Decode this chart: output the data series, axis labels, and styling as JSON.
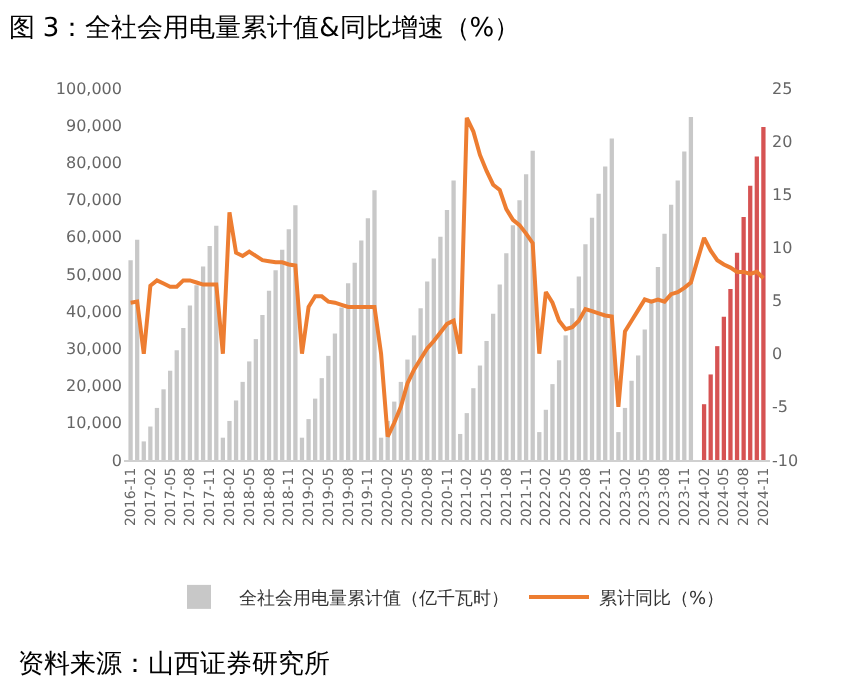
{
  "chart_data": {
    "type": "bar",
    "title": "图 3：全社会用电量累计值&同比增速（%）",
    "categories": [
      "2016-11",
      null,
      null,
      "2017-02",
      null,
      null,
      "2017-05",
      null,
      null,
      "2017-08",
      null,
      null,
      "2017-11",
      null,
      null,
      "2018-02",
      null,
      null,
      "2018-05",
      null,
      null,
      "2018-08",
      null,
      null,
      "2018-11",
      null,
      null,
      "2019-02",
      null,
      null,
      "2019-05",
      null,
      null,
      "2019-08",
      null,
      null,
      "2019-11",
      null,
      null,
      "2020-02",
      null,
      null,
      "2020-05",
      null,
      null,
      "2020-08",
      null,
      null,
      "2020-11",
      null,
      null,
      "2021-02",
      null,
      null,
      "2021-05",
      null,
      null,
      "2021-08",
      null,
      null,
      "2021-11",
      null,
      null,
      "2022-02",
      null,
      null,
      "2022-05",
      null,
      null,
      "2022-08",
      null,
      null,
      "2022-11",
      null,
      null,
      "2023-02",
      null,
      null,
      "2023-05",
      null,
      null,
      "2023-08",
      null,
      null,
      "2023-11",
      null,
      null,
      "2024-02",
      null,
      null,
      "2024-05",
      null,
      null,
      "2024-08",
      null,
      null,
      "2024-11"
    ],
    "series": [
      {
        "name": "全社会用电量累计值（亿千瓦时）",
        "color": "#c8c8c8",
        "colors": [
          "#c8c8c8",
          "#c8c8c8",
          "#c8c8c8",
          "#c8c8c8",
          "#c8c8c8",
          "#c8c8c8",
          "#c8c8c8",
          "#c8c8c8",
          "#c8c8c8",
          "#c8c8c8",
          "#c8c8c8",
          "#c8c8c8",
          "#c8c8c8",
          "#c8c8c8",
          "#c8c8c8",
          "#c8c8c8",
          "#c8c8c8",
          "#c8c8c8",
          "#c8c8c8",
          "#c8c8c8",
          "#c8c8c8",
          "#c8c8c8",
          "#c8c8c8",
          "#c8c8c8",
          "#c8c8c8",
          "#c8c8c8",
          "#c8c8c8",
          "#c8c8c8",
          "#c8c8c8",
          "#c8c8c8",
          "#c8c8c8",
          "#c8c8c8",
          "#c8c8c8",
          "#c8c8c8",
          "#c8c8c8",
          "#c8c8c8",
          "#c8c8c8",
          "#c8c8c8",
          "#c8c8c8",
          "#c8c8c8",
          "#c8c8c8",
          "#c8c8c8",
          "#c8c8c8",
          "#c8c8c8",
          "#c8c8c8",
          "#c8c8c8",
          "#c8c8c8",
          "#c8c8c8",
          "#c8c8c8",
          "#c8c8c8",
          "#c8c8c8",
          "#c8c8c8",
          "#c8c8c8",
          "#c8c8c8",
          "#c8c8c8",
          "#c8c8c8",
          "#c8c8c8",
          "#c8c8c8",
          "#c8c8c8",
          "#c8c8c8",
          "#c8c8c8",
          "#c8c8c8",
          "#c8c8c8",
          "#c8c8c8",
          "#c8c8c8",
          "#c8c8c8",
          "#c8c8c8",
          "#c8c8c8",
          "#c8c8c8",
          "#c8c8c8",
          "#c8c8c8",
          "#c8c8c8",
          "#c8c8c8",
          "#c8c8c8",
          "#c8c8c8",
          "#c8c8c8",
          "#c8c8c8",
          "#c8c8c8",
          "#c8c8c8",
          "#c8c8c8",
          "#c8c8c8",
          "#c8c8c8",
          "#c8c8c8",
          "#c8c8c8",
          "#c8c8c8",
          "#c8c8c8",
          "#d65353",
          "#d65353",
          "#d65353",
          "#d65353",
          "#d65353",
          "#d65353",
          "#d65353",
          "#d65353",
          "#d65353",
          "#d65353",
          "#d65353"
        ],
        "values": [
          53700,
          59200,
          5000,
          9000,
          14000,
          19000,
          24000,
          29500,
          35500,
          41500,
          47000,
          52000,
          57500,
          63000,
          6000,
          10500,
          16000,
          21000,
          26500,
          32500,
          39000,
          45500,
          51000,
          56500,
          62000,
          68500,
          6000,
          11000,
          16500,
          22000,
          28000,
          34000,
          41000,
          47500,
          53000,
          59000,
          65000,
          72500,
          6000,
          10500,
          15700,
          21000,
          27000,
          33500,
          40800,
          48000,
          54200,
          60000,
          67200,
          75100,
          7000,
          12600,
          19300,
          25400,
          32000,
          39300,
          47200,
          55600,
          63100,
          69800,
          76800,
          83100,
          7500,
          13500,
          20400,
          26800,
          33500,
          40800,
          49300,
          58000,
          65100,
          71600,
          78900,
          86400,
          7500,
          14000,
          21300,
          28100,
          35100,
          43100,
          51900,
          60800,
          68600,
          75100,
          82900,
          92200,
          null,
          15000,
          23000,
          30600,
          38500,
          46000,
          55700,
          65300,
          73700,
          81600,
          89500
        ]
      },
      {
        "name": "累计同比（%）",
        "type": "line",
        "axis": "y2",
        "color": "#ed7d31",
        "values": [
          4.8,
          4.9,
          0,
          6.4,
          6.9,
          6.6,
          6.3,
          6.3,
          6.9,
          6.9,
          6.7,
          6.5,
          6.5,
          6.5,
          0,
          13.3,
          9.5,
          9.2,
          9.6,
          9.2,
          8.8,
          8.7,
          8.6,
          8.6,
          8.4,
          8.3,
          0,
          4.4,
          5.4,
          5.4,
          4.9,
          4.8,
          4.6,
          4.4,
          4.4,
          4.4,
          4.4,
          4.4,
          0,
          -7.8,
          -6.5,
          -5.0,
          -2.8,
          -1.5,
          -0.5,
          0.5,
          1.2,
          2.0,
          2.8,
          3.1,
          0,
          22.2,
          20.9,
          18.7,
          17.2,
          15.9,
          15.4,
          13.6,
          12.6,
          12.1,
          11.3,
          10.4,
          0,
          5.8,
          4.8,
          3.1,
          2.3,
          2.5,
          3.1,
          4.2,
          4.0,
          3.8,
          3.6,
          3.5,
          -5.0,
          2.1,
          3.1,
          4.1,
          5.1,
          4.9,
          5.1,
          4.9,
          5.6,
          5.8,
          6.2,
          6.7,
          8.8,
          10.9,
          9.7,
          8.8,
          8.4,
          8.1,
          7.7,
          7.7,
          7.5,
          7.7,
          7.1
        ]
      }
    ],
    "ylim": [
      0,
      100000
    ],
    "yticks": [
      0,
      {
        "value": 10000,
        "label": "10,000"
      },
      {
        "value": 20000,
        "label": "20,000"
      },
      {
        "value": 30000,
        "label": "30,000"
      },
      {
        "value": 40000,
        "label": "40,000"
      },
      {
        "value": 50000,
        "label": "50,000"
      },
      {
        "value": 60000,
        "label": "60,000"
      },
      {
        "value": 70000,
        "label": "70,000"
      },
      {
        "value": 80000,
        "label": "80,000"
      },
      {
        "value": 90000,
        "label": "90,000"
      },
      {
        "value": 100000,
        "label": "100,000"
      }
    ],
    "y2lim": [
      -10,
      25
    ],
    "y2ticks": [
      -10,
      -5,
      0,
      5,
      10,
      15,
      20,
      25
    ],
    "grid": false,
    "legend": "bottom",
    "line_style": "solid",
    "marker": "none",
    "annotations": [
      "资料来源：山西证券研究所"
    ]
  }
}
